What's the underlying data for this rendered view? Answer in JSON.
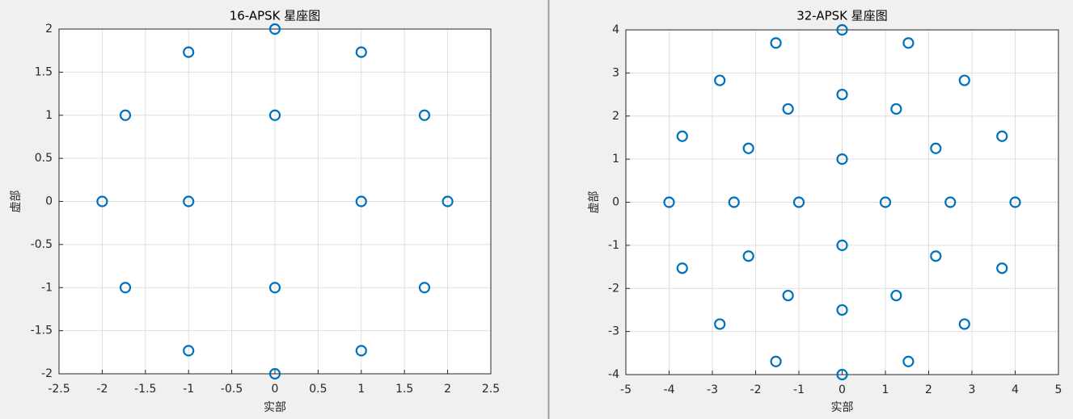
{
  "chart_data": [
    {
      "type": "scatter",
      "title": "16-APSK 星座图",
      "xlabel": "实部",
      "ylabel": "虚部",
      "x": [
        1,
        0,
        -1,
        0,
        2,
        1.732,
        1,
        0,
        -1,
        -1.732,
        -2,
        -1.732,
        -1,
        0,
        1,
        1.732
      ],
      "values": [
        0,
        1,
        0,
        -1,
        0,
        1,
        1.732,
        2,
        1.732,
        1,
        0,
        -1,
        -1.732,
        -2,
        -1.732,
        -1
      ],
      "color": "#0072bd",
      "grid": true,
      "xlim": [
        -2.5,
        2.5
      ],
      "xticks": [
        -2.5,
        -2,
        -1.5,
        -1,
        -0.5,
        0,
        0.5,
        1,
        1.5,
        2,
        2.5
      ],
      "ylim": [
        -2,
        2
      ],
      "yticks": [
        -2,
        -1.5,
        -1,
        -0.5,
        0,
        0.5,
        1,
        1.5,
        2
      ]
    },
    {
      "type": "scatter",
      "title": "32-APSK 星座图",
      "xlabel": "实部",
      "ylabel": "虚部",
      "x": [
        1,
        0,
        -1,
        0,
        2.5,
        2.165,
        1.25,
        0,
        -1.25,
        -2.165,
        -2.5,
        -2.165,
        -1.25,
        0,
        1.25,
        2.165,
        4,
        3.696,
        2.828,
        1.531,
        0,
        -1.531,
        -2.828,
        -3.696,
        -4,
        -3.696,
        -2.828,
        -1.531,
        0,
        1.531,
        2.828,
        3.696
      ],
      "values": [
        0,
        1,
        0,
        -1,
        0,
        1.25,
        2.165,
        2.5,
        2.165,
        1.25,
        0,
        -1.25,
        -2.165,
        -2.5,
        -2.165,
        -1.25,
        0,
        1.531,
        2.828,
        3.696,
        4,
        3.696,
        2.828,
        1.531,
        0,
        -1.531,
        -2.828,
        -3.696,
        -4,
        -3.696,
        -2.828,
        -1.531
      ],
      "color": "#0072bd",
      "grid": true,
      "xlim": [
        -5,
        5
      ],
      "xticks": [
        -5,
        -4,
        -3,
        -2,
        -1,
        0,
        1,
        2,
        3,
        4,
        5
      ],
      "ylim": [
        -4,
        4
      ],
      "yticks": [
        -4,
        -3,
        -2,
        -1,
        0,
        1,
        2,
        3,
        4
      ]
    }
  ]
}
